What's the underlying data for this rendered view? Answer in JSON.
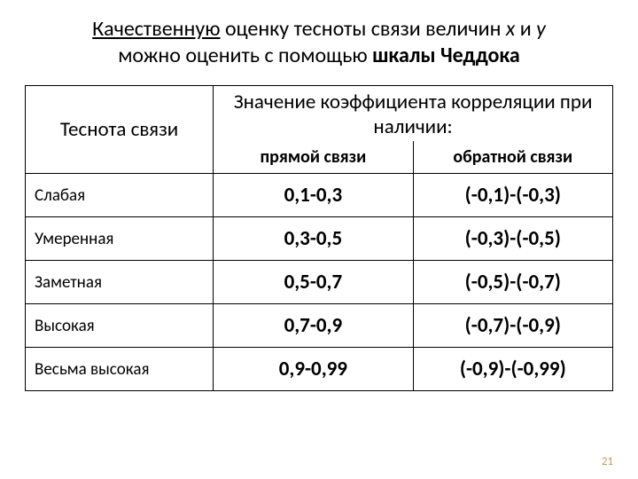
{
  "title": {
    "part1_underline": "Качественную",
    "part2": " оценку тесноты связи величин ",
    "var1": "х",
    "and": " и ",
    "var2": "у",
    "line2_a": "можно оценить с помощью ",
    "line2_b_bold": "шкалы Чеддока"
  },
  "table": {
    "row_header": "Теснота связи",
    "top_header": "Значение коэффициента корреляции при наличии:",
    "sub_headers": [
      "прямой связи",
      "обратной связи"
    ],
    "rows": [
      {
        "label": "Слабая",
        "direct": "0,1-0,3",
        "inverse": "(-0,1)-(-0,3)"
      },
      {
        "label": "Умеренная",
        "direct": "0,3-0,5",
        "inverse": "(-0,3)-(-0,5)"
      },
      {
        "label": "Заметная",
        "direct": "0,5-0,7",
        "inverse": "(-0,5)-(-0,7)"
      },
      {
        "label": "Высокая",
        "direct": "0,7-0,9",
        "inverse": "(-0,7)-(-0,9)"
      },
      {
        "label": "Весьма высокая",
        "direct": "0,9-0,99",
        "inverse": "(-0,9)-(-0,99)"
      }
    ]
  },
  "page_number": "21",
  "colors": {
    "background": "#ffffff",
    "text": "#000000",
    "border": "#000000",
    "page_num": "#c19a5b"
  },
  "typography": {
    "title_fontsize": 24,
    "header_fontsize": 23,
    "subheader_fontsize": 20,
    "rowlabel_fontsize": 19,
    "data_fontsize": 23
  }
}
